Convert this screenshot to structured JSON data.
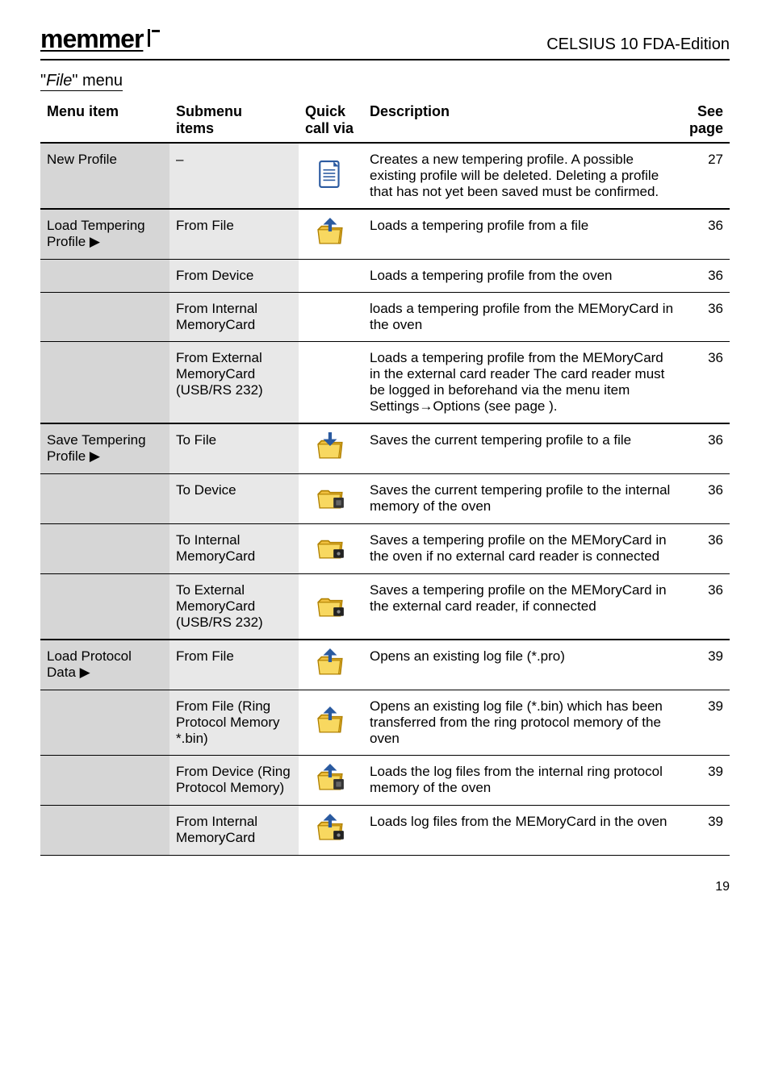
{
  "header": {
    "logo_text": "memmer",
    "doc_title": "CELSIUS 10 FDA-Edition"
  },
  "menu_heading": {
    "pre": "\"",
    "italic": "File",
    "post": "\" menu"
  },
  "table": {
    "columns": {
      "menu": "Menu item",
      "submenu_l1": "Submenu",
      "submenu_l2": "items",
      "quick_l1": "Quick",
      "quick_l2": "call via",
      "desc": "Description",
      "see_l1": "See",
      "see_l2": "page"
    },
    "rows": [
      {
        "menu": "New Profile",
        "submenu": "–",
        "icon": "file-new",
        "desc": "Creates a new tempering profile. A possible existing profile will be deleted. Deleting a profile that has not yet been saved must be confirmed.",
        "see": "27",
        "group_start": true
      },
      {
        "menu": "Load Tempering Profile ▶",
        "submenu": "From File",
        "icon": "load-file",
        "desc": "Loads a tempering profile from a file",
        "see": "36",
        "group_start": true
      },
      {
        "menu": "",
        "submenu": "From Device",
        "icon": "",
        "desc": "Loads a tempering profile from the oven",
        "see": "36"
      },
      {
        "menu": "",
        "submenu": "From Internal MemoryCard",
        "icon": "",
        "desc": "loads a tempering profile from the MEMoryCard in the oven",
        "see": "36"
      },
      {
        "menu": "",
        "submenu": "From External MemoryCard (USB/RS 232)",
        "icon": "",
        "desc": "Loads a tempering profile from the MEMoryCard in the external card reader The card reader must be logged in beforehand via the menu item Settings→Options (see page ).",
        "see": "36"
      },
      {
        "menu": "Save Tempering Profile ▶",
        "submenu": "To File",
        "icon": "save-file",
        "desc": "Saves the current tempering profile to a file",
        "see": "36",
        "group_start": true
      },
      {
        "menu": "",
        "submenu": "To Device",
        "icon": "save-device",
        "desc": "Saves the current tempering profile to the internal memory of the oven",
        "see": "36"
      },
      {
        "menu": "",
        "submenu": "To Internal MemoryCard",
        "icon": "save-card",
        "desc": "Saves a tempering profile on the MEMoryCard in the oven if no external card reader is connected",
        "see": "36"
      },
      {
        "menu": "",
        "submenu": "To External MemoryCard (USB/RS 232)",
        "icon": "save-card-ext",
        "desc": "Saves a tempering profile on the MEMoryCard in the external card reader, if connected",
        "see": "36"
      },
      {
        "menu": "Load Protocol Data ▶",
        "submenu": "From File",
        "icon": "load-protocol",
        "desc": "Opens an existing log file (*.pro)",
        "see": "39",
        "group_start": true
      },
      {
        "menu": "",
        "submenu": "From File (Ring Protocol Memory *.bin)",
        "icon": "load-ring-file",
        "desc": "Opens an existing log file (*.bin) which has been transferred from the ring protocol memory of the oven",
        "see": "39"
      },
      {
        "menu": "",
        "submenu": "From Device (Ring Protocol Memory)",
        "icon": "load-ring-device",
        "desc": "Loads the log files from the internal ring protocol memory of the oven",
        "see": "39"
      },
      {
        "menu": "",
        "submenu": "From Internal MemoryCard",
        "icon": "load-internal-card",
        "desc": "Loads log files from the MEMoryCard in the oven",
        "see": "39"
      }
    ]
  },
  "page_number": "19",
  "icons": {
    "file-new": "file",
    "load-file": "folder-up",
    "save-file": "folder-down",
    "save-device": "folder-chip",
    "save-card": "folder-card",
    "save-card-ext": "folder-card",
    "load-protocol": "folder-up-grey",
    "load-ring-file": "folder-up-grey",
    "load-ring-device": "folder-chip-up",
    "load-internal-card": "folder-card-up"
  },
  "colors": {
    "col_menu_bg": "#d6d6d6",
    "col_sub_bg": "#e8e8e8"
  }
}
